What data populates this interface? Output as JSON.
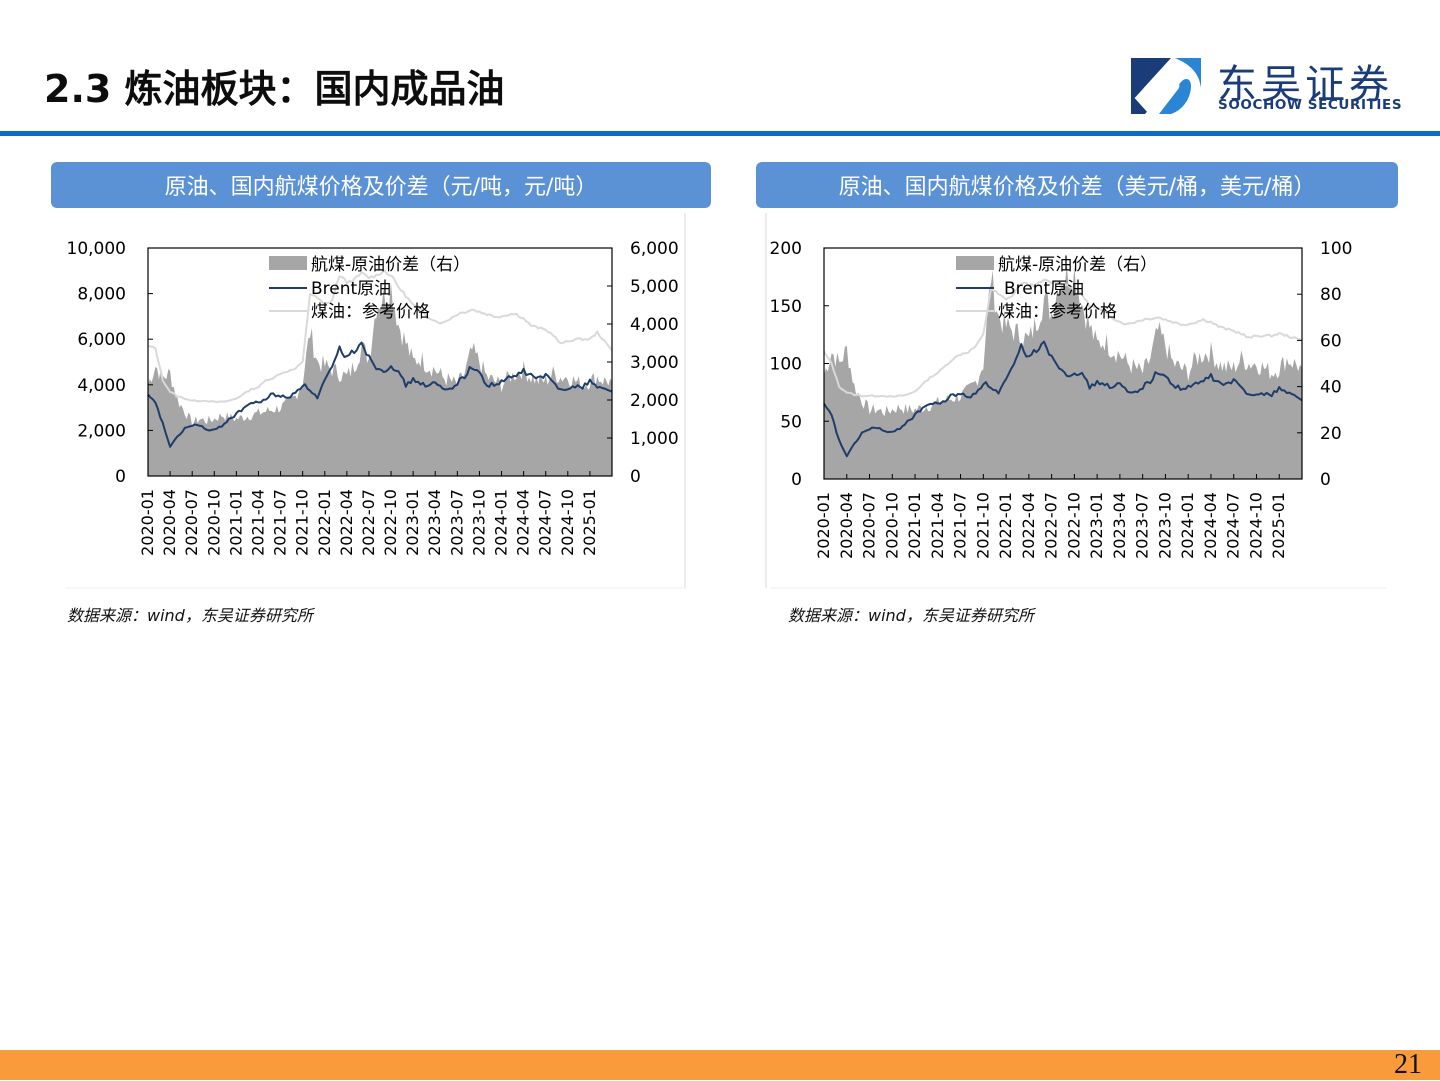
{
  "header": {
    "title": "2.3 炼油板块：国内成品油",
    "logo_cn": "东吴证券",
    "logo_en": "SOOCHOW SECURITIES"
  },
  "colors": {
    "accent_blue": "#0a6dbf",
    "panel_title_bg": "#5b92d6",
    "brent_line": "#1f3d6b",
    "jet_line": "#d9d9d9",
    "spread_area": "#a6a6a6",
    "footer": "#f99b3a",
    "logo_dark": "#1a3d7a",
    "logo_light": "#2a86d4"
  },
  "panels": [
    {
      "title": "原油、国内航煤价格及价差（元/吨，元/吨）",
      "source": "数据来源：wind，东吴证券研究所"
    },
    {
      "title": "原油、国内航煤价格及价差（美元/桶，美元/桶）",
      "source": "数据来源：wind，东吴证券研究所"
    }
  ],
  "footer": {
    "page_number": "21"
  },
  "chart_data": [
    {
      "type": "line",
      "title": "原油、国内航煤价格及价差（元/吨，元/吨）",
      "xlabel": "",
      "ylabel": "",
      "ylim": [
        0,
        10000
      ],
      "y2lim": [
        0,
        6000
      ],
      "yticks": [
        "0",
        "2,000",
        "4,000",
        "6,000",
        "8,000",
        "10,000"
      ],
      "y2ticks": [
        "0",
        "1,000",
        "2,000",
        "3,000",
        "4,000",
        "5,000",
        "6,000"
      ],
      "categories": [
        "2020-01",
        "2020-04",
        "2020-07",
        "2020-10",
        "2021-01",
        "2021-04",
        "2021-07",
        "2021-10",
        "2022-01",
        "2022-04",
        "2022-07",
        "2022-10",
        "2023-01",
        "2023-04",
        "2023-07",
        "2023-10",
        "2024-01",
        "2024-04",
        "2024-07",
        "2024-10",
        "2025-01"
      ],
      "legend": [
        "航煤-原油价差（右）",
        "Brent原油",
        "煤油：参考价格"
      ],
      "legend_position": "top-center inside",
      "grid": false,
      "x_months": 64,
      "series": [
        {
          "name": "航煤-原油价差（右）",
          "kind": "area",
          "axis": "right",
          "values": [
            2400,
            2900,
            2600,
            2700,
            2000,
            1700,
            1400,
            1500,
            1450,
            1500,
            1600,
            1550,
            1500,
            1550,
            1600,
            1650,
            1700,
            1750,
            1800,
            1900,
            2100,
            2500,
            3800,
            3000,
            2900,
            2800,
            2700,
            2600,
            2900,
            3400,
            3100,
            4500,
            4700,
            5000,
            4000,
            3500,
            3000,
            3100,
            2900,
            2800,
            2600,
            2500,
            2400,
            2700,
            3300,
            3000,
            2600,
            2500,
            2400,
            2600,
            2700,
            2800,
            2600,
            2500,
            2500,
            2700,
            2600,
            2600,
            2500,
            2400,
            2500,
            2600,
            2500,
            2500
          ]
        },
        {
          "name": "Brent原油",
          "kind": "line",
          "axis": "left",
          "values": [
            3500,
            3200,
            2300,
            1300,
            1700,
            2100,
            2200,
            2250,
            2000,
            2000,
            2200,
            2500,
            2700,
            3000,
            3200,
            3200,
            3400,
            3600,
            3500,
            3400,
            3700,
            4000,
            3800,
            3400,
            4200,
            4700,
            5600,
            5200,
            5500,
            5900,
            5200,
            4800,
            4600,
            4900,
            4500,
            4000,
            4200,
            4100,
            3900,
            4100,
            3800,
            3800,
            4100,
            4400,
            4800,
            4500,
            4000,
            4000,
            4100,
            4300,
            4400,
            4600,
            4400,
            4300,
            4400,
            4100,
            3800,
            3900,
            3900,
            3900,
            4200,
            3900,
            3800,
            3700
          ]
        },
        {
          "name": "煤油：参考价格",
          "kind": "line",
          "axis": "left",
          "values": [
            5700,
            5600,
            4200,
            3700,
            3500,
            3400,
            3300,
            3300,
            3300,
            3250,
            3250,
            3300,
            3400,
            3600,
            3800,
            3900,
            4200,
            4300,
            4500,
            4600,
            4700,
            5000,
            8000,
            7800,
            7500,
            7700,
            8800,
            8500,
            8600,
            8900,
            8700,
            8800,
            9000,
            8800,
            8300,
            7900,
            7500,
            7300,
            7000,
            6800,
            6700,
            6900,
            7100,
            7200,
            7300,
            7200,
            7100,
            7000,
            7000,
            7100,
            7100,
            6900,
            6600,
            6500,
            6400,
            6200,
            5800,
            5900,
            6000,
            6000,
            6000,
            6300,
            5900,
            5500
          ]
        }
      ]
    },
    {
      "type": "line",
      "title": "原油、国内航煤价格及价差（美元/桶，美元/桶）",
      "xlabel": "",
      "ylabel": "",
      "ylim": [
        0,
        200
      ],
      "y2lim": [
        0,
        100
      ],
      "yticks": [
        "0",
        "50",
        "100",
        "150",
        "200"
      ],
      "y2ticks": [
        "0",
        "20",
        "40",
        "60",
        "80",
        "100"
      ],
      "categories": [
        "2020-01",
        "2020-04",
        "2020-07",
        "2020-10",
        "2021-01",
        "2021-04",
        "2021-07",
        "2021-10",
        "2022-01",
        "2022-04",
        "2022-07",
        "2022-10",
        "2023-01",
        "2023-04",
        "2023-07",
        "2023-10",
        "2024-01",
        "2024-04",
        "2024-07",
        "2024-10",
        "2025-01"
      ],
      "legend": [
        "航煤-原油价差（右）",
        "Brent原油",
        "煤油：参考价格"
      ],
      "legend_position": "top-center inside",
      "grid": false,
      "x_months": 64,
      "series": [
        {
          "name": "航煤-原油价差（右）",
          "kind": "area",
          "axis": "right",
          "values": [
            45,
            55,
            50,
            56,
            40,
            34,
            30,
            30,
            29,
            30,
            31,
            30,
            30,
            31,
            32,
            33,
            34,
            35,
            36,
            38,
            42,
            50,
            88,
            70,
            66,
            64,
            62,
            60,
            68,
            78,
            72,
            86,
            88,
            90,
            76,
            66,
            58,
            60,
            56,
            54,
            50,
            48,
            46,
            52,
            64,
            58,
            50,
            48,
            46,
            52,
            54,
            55,
            50,
            48,
            48,
            52,
            50,
            50,
            48,
            46,
            48,
            52,
            50,
            48
          ]
        },
        {
          "name": "Brent原油",
          "kind": "line",
          "axis": "left",
          "values": [
            64,
            55,
            33,
            20,
            30,
            40,
            43,
            45,
            41,
            40,
            44,
            50,
            55,
            62,
            65,
            65,
            68,
            73,
            74,
            70,
            75,
            83,
            80,
            74,
            86,
            97,
            115,
            105,
            112,
            120,
            105,
            98,
            90,
            93,
            90,
            80,
            83,
            83,
            78,
            83,
            75,
            75,
            80,
            85,
            93,
            88,
            82,
            78,
            79,
            82,
            85,
            89,
            83,
            82,
            85,
            79,
            73,
            75,
            73,
            73,
            79,
            75,
            72,
            68
          ]
        },
        {
          "name": "煤油：参考价格",
          "kind": "line",
          "axis": "left",
          "values": [
            110,
            100,
            80,
            75,
            73,
            72,
            72,
            72,
            72,
            71,
            72,
            73,
            76,
            82,
            88,
            92,
            98,
            104,
            108,
            110,
            115,
            125,
            165,
            160,
            155,
            160,
            170,
            168,
            168,
            172,
            170,
            170,
            168,
            165,
            160,
            150,
            148,
            144,
            140,
            136,
            134,
            136,
            138,
            139,
            140,
            138,
            136,
            134,
            134,
            136,
            138,
            136,
            132,
            130,
            128,
            126,
            122,
            124,
            124,
            124,
            126,
            124,
            122,
            120
          ]
        }
      ]
    }
  ]
}
